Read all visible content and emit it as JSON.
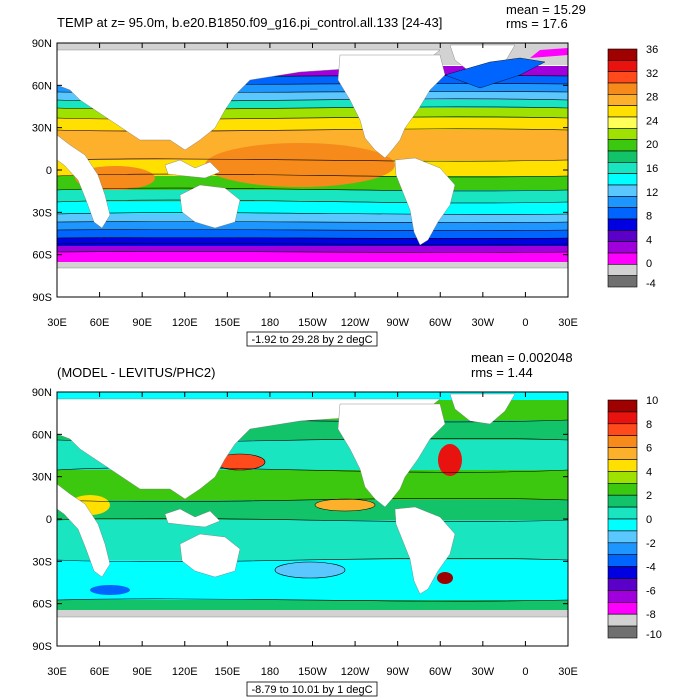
{
  "chart_data": [
    {
      "type": "heatmap",
      "title": "TEMP at z=  95.0m, b.e20.B1850.f09_g16.pi_control.all.133 [24-43]",
      "stats": {
        "mean": "mean = 15.29",
        "rms": "rms = 17.6"
      },
      "x_ticks": [
        "30E",
        "60E",
        "90E",
        "120E",
        "150E",
        "180",
        "150W",
        "120W",
        "90W",
        "60W",
        "30W",
        "0",
        "30E"
      ],
      "y_ticks": [
        "90N",
        "60N",
        "30N",
        "0",
        "30S",
        "60S",
        "90S"
      ],
      "ylim": [
        -90,
        90
      ],
      "xlim": [
        30,
        390
      ],
      "range_label": "-1.92 to 29.28 by 2 degC",
      "colorbar": {
        "levels": [
          "36",
          "32",
          "28",
          "24",
          "20",
          "16",
          "12",
          "8",
          "4",
          "0",
          "-4"
        ],
        "colors": [
          "#9f0000",
          "#e8120e",
          "#ff4b1c",
          "#f68a1b",
          "#fdb02c",
          "#ffe000",
          "#ffff5a",
          "#9fe100",
          "#3cc80e",
          "#12c36a",
          "#19e6c1",
          "#00ffff",
          "#5ac8ff",
          "#1e96ff",
          "#0064ff",
          "#0000e1",
          "#5a00c8",
          "#a000dc",
          "#ff00ff",
          "#d2d2d2",
          "#707070"
        ]
      }
    },
    {
      "type": "heatmap",
      "title": "(MODEL - LEVITUS/PHC2)",
      "stats": {
        "mean": "mean = 0.002048",
        "rms": "rms = 1.44"
      },
      "x_ticks": [
        "30E",
        "60E",
        "90E",
        "120E",
        "150E",
        "180",
        "150W",
        "120W",
        "90W",
        "60W",
        "30W",
        "0",
        "30E"
      ],
      "y_ticks": [
        "90N",
        "60N",
        "30N",
        "0",
        "30S",
        "60S",
        "90S"
      ],
      "ylim": [
        -90,
        90
      ],
      "xlim": [
        30,
        390
      ],
      "range_label": "-8.79 to 10.01 by 1 degC",
      "colorbar": {
        "levels": [
          "10",
          "8",
          "6",
          "4",
          "2",
          "0",
          "-2",
          "-4",
          "-6",
          "-8",
          "-10"
        ],
        "colors": [
          "#9f0000",
          "#e8120e",
          "#ff4b1c",
          "#f68a1b",
          "#fdb02c",
          "#ffe000",
          "#9fe100",
          "#3cc80e",
          "#12c36a",
          "#19e6c1",
          "#00ffff",
          "#5ac8ff",
          "#1e96ff",
          "#0064ff",
          "#0000e1",
          "#5a00c8",
          "#a000dc",
          "#ff00ff",
          "#d2d2d2",
          "#707070"
        ]
      }
    }
  ]
}
